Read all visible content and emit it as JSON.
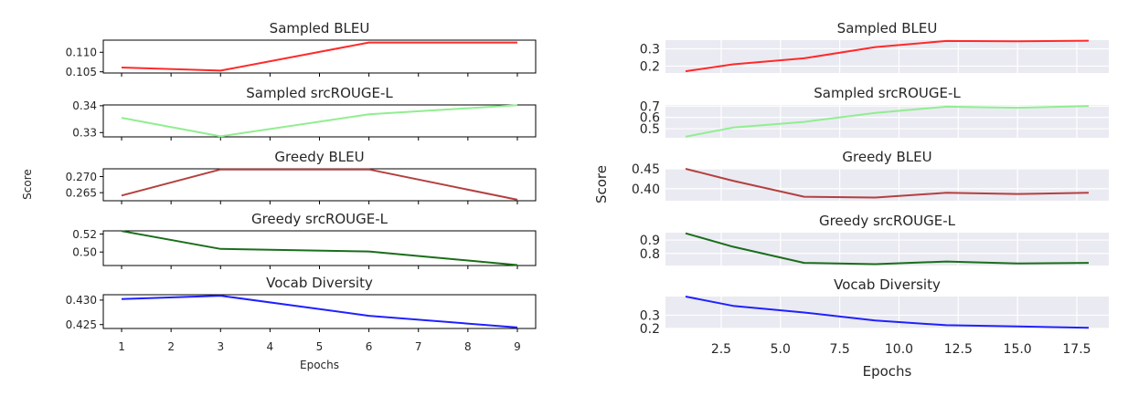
{
  "chart_data": [
    {
      "type": "line",
      "style": "plain",
      "xlabel": "Epochs",
      "ylabel": "Score",
      "x_ticks": [
        1,
        2,
        3,
        4,
        5,
        6,
        7,
        8,
        9
      ],
      "x_tick_labels": [
        "1",
        "2",
        "3",
        "4",
        "5",
        "6",
        "7",
        "8",
        "9"
      ],
      "xlim": [
        0.63,
        9.37
      ],
      "grid": false,
      "subplots": [
        {
          "title": "Sampled BLEU",
          "color": "#ff2a2a",
          "x": [
            1,
            3,
            6,
            9
          ],
          "values": [
            0.1061,
            0.1053,
            0.1125,
            0.1125
          ],
          "ylim": [
            0.1047,
            0.1131
          ],
          "y_ticks": [
            0.105,
            0.11
          ],
          "y_tick_labels": [
            "0.105",
            "0.110"
          ]
        },
        {
          "title": "Sampled srcROUGE-L",
          "color": "#90ee90",
          "x": [
            1,
            3,
            6,
            9
          ],
          "values": [
            0.3355,
            0.3286,
            0.3368,
            0.3402
          ],
          "ylim": [
            0.3284,
            0.3403
          ],
          "y_ticks": [
            0.33,
            0.34
          ],
          "y_tick_labels": [
            "0.33",
            "0.34"
          ]
        },
        {
          "title": "Greedy BLEU",
          "color": "#b44040",
          "x": [
            1,
            3,
            6,
            9
          ],
          "values": [
            0.2641,
            0.2722,
            0.2722,
            0.2628
          ],
          "ylim": [
            0.2625,
            0.2724
          ],
          "y_ticks": [
            0.265,
            0.27
          ],
          "y_tick_labels": [
            "0.265",
            "0.270"
          ]
        },
        {
          "title": "Greedy srcROUGE-L",
          "color": "#1a6e1a",
          "x": [
            1,
            3,
            6,
            9
          ],
          "values": [
            0.5233,
            0.5034,
            0.5006,
            0.4855
          ],
          "ylim": [
            0.485,
            0.5235
          ],
          "y_ticks": [
            0.5,
            0.52
          ],
          "y_tick_labels": [
            "0.50",
            "0.52"
          ]
        },
        {
          "title": "Vocab Diversity",
          "color": "#2020ff",
          "x": [
            1,
            3,
            6,
            9
          ],
          "values": [
            0.4302,
            0.4309,
            0.4268,
            0.4244
          ],
          "ylim": [
            0.4242,
            0.4311
          ],
          "y_ticks": [
            0.425,
            0.43
          ],
          "y_tick_labels": [
            "0.425",
            "0.430"
          ]
        }
      ]
    },
    {
      "type": "line",
      "style": "seaborn-darkgrid",
      "xlabel": "Epochs",
      "ylabel": "Score",
      "x_ticks": [
        2.5,
        5.0,
        7.5,
        10.0,
        12.5,
        15.0,
        17.5
      ],
      "x_tick_labels": [
        "2.5",
        "5.0",
        "7.5",
        "10.0",
        "12.5",
        "15.0",
        "17.5"
      ],
      "xlim": [
        0.15,
        18.85
      ],
      "grid": true,
      "subplots": [
        {
          "title": "Sampled BLEU",
          "color": "#ff2a2a",
          "x": [
            1,
            3,
            6,
            9,
            12,
            15,
            18
          ],
          "values": [
            0.17,
            0.21,
            0.245,
            0.31,
            0.345,
            0.343,
            0.347
          ],
          "ylim": [
            0.16,
            0.35
          ],
          "y_ticks": [
            0.2,
            0.3
          ],
          "y_tick_labels": [
            "0.2",
            "0.3"
          ]
        },
        {
          "title": "Sampled srcROUGE-L",
          "color": "#90ee90",
          "x": [
            1,
            3,
            6,
            9,
            12,
            15,
            18
          ],
          "values": [
            0.43,
            0.51,
            0.56,
            0.64,
            0.695,
            0.685,
            0.7
          ],
          "ylim": [
            0.42,
            0.71
          ],
          "y_ticks": [
            0.5,
            0.6,
            0.7
          ],
          "y_tick_labels": [
            "0.5",
            "0.6",
            "0.7"
          ]
        },
        {
          "title": "Greedy BLEU",
          "color": "#b44040",
          "x": [
            1,
            3,
            6,
            9,
            12,
            15,
            18
          ],
          "values": [
            0.45,
            0.42,
            0.38,
            0.378,
            0.39,
            0.387,
            0.39
          ],
          "ylim": [
            0.37,
            0.45
          ],
          "y_ticks": [
            0.4,
            0.45
          ],
          "y_tick_labels": [
            "0.40",
            "0.45"
          ]
        },
        {
          "title": "Greedy srcROUGE-L",
          "color": "#1a6e1a",
          "x": [
            1,
            3,
            6,
            9,
            12,
            15,
            18
          ],
          "values": [
            0.95,
            0.85,
            0.73,
            0.72,
            0.74,
            0.725,
            0.73
          ],
          "ylim": [
            0.71,
            0.955
          ],
          "y_ticks": [
            0.8,
            0.9
          ],
          "y_tick_labels": [
            "0.8",
            "0.9"
          ]
        },
        {
          "title": "Vocab Diversity",
          "color": "#2020ff",
          "x": [
            1,
            3,
            6,
            9,
            12,
            15,
            18
          ],
          "values": [
            0.44,
            0.37,
            0.32,
            0.26,
            0.225,
            0.215,
            0.205
          ],
          "ylim": [
            0.2,
            0.44
          ],
          "y_ticks": [
            0.2,
            0.3
          ],
          "y_tick_labels": [
            "0.2",
            "0.3"
          ]
        }
      ]
    }
  ]
}
